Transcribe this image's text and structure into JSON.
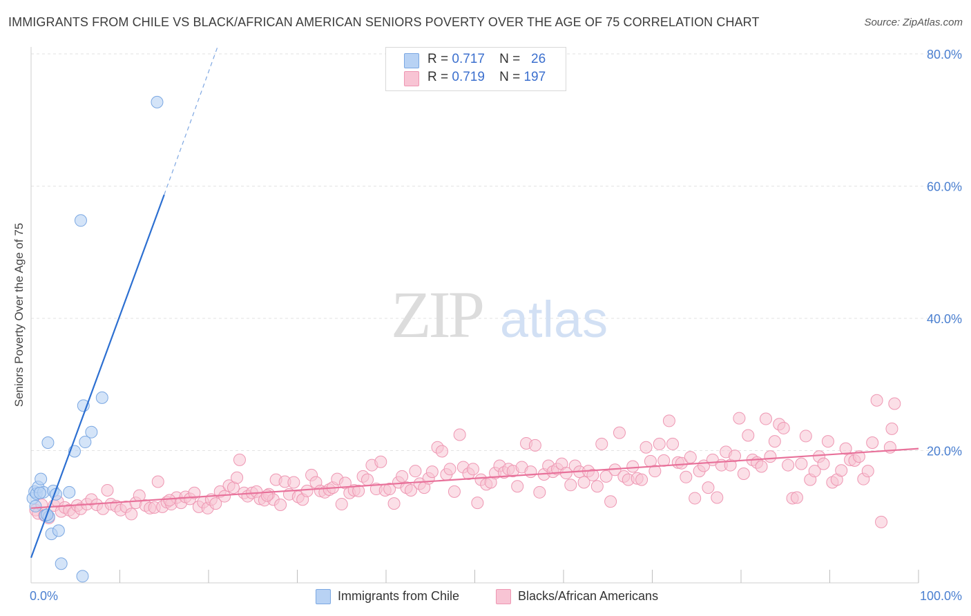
{
  "title": "IMMIGRANTS FROM CHILE VS BLACK/AFRICAN AMERICAN SENIORS POVERTY OVER THE AGE OF 75 CORRELATION CHART",
  "source": "Source: ZipAtlas.com",
  "watermark": {
    "zip": "ZIP",
    "atlas": "atlas"
  },
  "legend_top": {
    "rows": [
      {
        "r_label": "R =",
        "r_value": "0.717",
        "n_label": "N =",
        "n_value": "26"
      },
      {
        "r_label": "R =",
        "r_value": "0.719",
        "n_label": "N =",
        "n_value": "197"
      }
    ]
  },
  "colors": {
    "chile_fill": "#b8d2f4",
    "chile_stroke": "#7aa7e2",
    "chile_line": "#2c6fd1",
    "black_fill": "#f8c4d4",
    "black_stroke": "#ee96b2",
    "black_line": "#e8719a",
    "axis_text": "#4a7fd0",
    "grid": "#e2e2e2"
  },
  "chart_data": {
    "type": "scatter",
    "title": "IMMIGRANTS FROM CHILE VS BLACK/AFRICAN AMERICAN SENIORS POVERTY OVER THE AGE OF 75 CORRELATION CHART",
    "xlabel": "",
    "ylabel": "Seniors Poverty Over the Age of 75",
    "xlim": [
      0,
      100
    ],
    "ylim": [
      0,
      80
    ],
    "x_tick_labels": [
      "0.0%",
      "100.0%"
    ],
    "y_tick_labels": [
      "20.0%",
      "40.0%",
      "60.0%",
      "80.0%"
    ],
    "y_ticks": [
      20,
      40,
      60,
      80
    ],
    "grid": true,
    "legend_position": "bottom",
    "series": [
      {
        "name": "Immigrants from Chile",
        "r": 0.717,
        "n": 26,
        "trend": {
          "x": [
            0,
            15
          ],
          "y": [
            3.8,
            58.7
          ],
          "dashed_to": [
            21,
            81
          ]
        },
        "points": [
          [
            0.2,
            12.8
          ],
          [
            0.4,
            13.8
          ],
          [
            0.6,
            13.5
          ],
          [
            0.8,
            14.5
          ],
          [
            1.1,
            15.7
          ],
          [
            1.4,
            13.7
          ],
          [
            1.6,
            10.2
          ],
          [
            1.9,
            21.2
          ],
          [
            2.0,
            10.0
          ],
          [
            2.3,
            7.4
          ],
          [
            2.5,
            13.9
          ],
          [
            2.8,
            13.4
          ],
          [
            3.1,
            7.9
          ],
          [
            3.4,
            2.9
          ],
          [
            4.3,
            13.7
          ],
          [
            4.9,
            19.9
          ],
          [
            5.6,
            54.8
          ],
          [
            5.8,
            1.0
          ],
          [
            5.9,
            26.8
          ],
          [
            6.1,
            21.3
          ],
          [
            6.8,
            22.8
          ],
          [
            8.0,
            28.0
          ],
          [
            14.2,
            72.7
          ],
          [
            0.5,
            11.6
          ],
          [
            1.0,
            13.6
          ],
          [
            1.8,
            10.3
          ]
        ]
      },
      {
        "name": "Blacks/African Americans",
        "r": 0.719,
        "n": 197,
        "trend": {
          "x": [
            0,
            100
          ],
          "y": [
            11.3,
            20.3
          ]
        },
        "points": [
          [
            0.5,
            11.0
          ],
          [
            0.8,
            10.5
          ],
          [
            1.2,
            11.8
          ],
          [
            1.5,
            10.2
          ],
          [
            2.0,
            9.8
          ],
          [
            2.6,
            11.7
          ],
          [
            3.0,
            12.3
          ],
          [
            3.4,
            10.8
          ],
          [
            3.8,
            11.4
          ],
          [
            4.3,
            11.0
          ],
          [
            4.8,
            10.6
          ],
          [
            5.2,
            11.7
          ],
          [
            5.6,
            11.2
          ],
          [
            6.3,
            11.9
          ],
          [
            6.8,
            12.6
          ],
          [
            7.4,
            11.8
          ],
          [
            8.1,
            11.2
          ],
          [
            8.6,
            14.0
          ],
          [
            9.0,
            11.9
          ],
          [
            9.6,
            11.6
          ],
          [
            10.1,
            11.0
          ],
          [
            10.7,
            11.5
          ],
          [
            11.3,
            10.4
          ],
          [
            11.8,
            12.1
          ],
          [
            12.2,
            13.2
          ],
          [
            12.9,
            11.7
          ],
          [
            13.4,
            11.3
          ],
          [
            13.9,
            11.4
          ],
          [
            14.3,
            15.3
          ],
          [
            14.8,
            11.5
          ],
          [
            15.3,
            12.2
          ],
          [
            15.8,
            11.9
          ],
          [
            16.4,
            12.9
          ],
          [
            16.9,
            12.1
          ],
          [
            17.4,
            13.0
          ],
          [
            17.9,
            12.7
          ],
          [
            18.4,
            13.6
          ],
          [
            18.9,
            11.5
          ],
          [
            19.4,
            12.2
          ],
          [
            19.9,
            11.3
          ],
          [
            20.3,
            12.6
          ],
          [
            20.8,
            12.0
          ],
          [
            21.3,
            13.8
          ],
          [
            21.8,
            13.1
          ],
          [
            22.3,
            14.7
          ],
          [
            22.8,
            14.4
          ],
          [
            23.2,
            15.9
          ],
          [
            23.5,
            18.6
          ],
          [
            24.0,
            13.6
          ],
          [
            24.4,
            13.1
          ],
          [
            24.9,
            13.6
          ],
          [
            25.4,
            13.8
          ],
          [
            25.8,
            12.7
          ],
          [
            26.3,
            12.5
          ],
          [
            26.8,
            13.4
          ],
          [
            27.3,
            12.6
          ],
          [
            27.6,
            15.6
          ],
          [
            28.1,
            11.8
          ],
          [
            28.6,
            15.3
          ],
          [
            29.1,
            13.4
          ],
          [
            29.6,
            15.2
          ],
          [
            30.1,
            13.0
          ],
          [
            30.6,
            12.6
          ],
          [
            31.1,
            13.9
          ],
          [
            31.6,
            16.3
          ],
          [
            32.1,
            15.2
          ],
          [
            32.6,
            13.9
          ],
          [
            33.1,
            13.7
          ],
          [
            33.6,
            14.1
          ],
          [
            34.0,
            14.4
          ],
          [
            34.5,
            15.7
          ],
          [
            35.0,
            11.9
          ],
          [
            35.4,
            15.1
          ],
          [
            35.9,
            13.6
          ],
          [
            36.4,
            14.0
          ],
          [
            36.9,
            13.9
          ],
          [
            37.4,
            16.1
          ],
          [
            37.9,
            15.6
          ],
          [
            38.4,
            17.8
          ],
          [
            38.9,
            14.2
          ],
          [
            39.4,
            18.3
          ],
          [
            39.9,
            14.0
          ],
          [
            40.4,
            14.2
          ],
          [
            40.9,
            12.0
          ],
          [
            41.4,
            15.2
          ],
          [
            41.8,
            16.1
          ],
          [
            42.3,
            14.4
          ],
          [
            42.8,
            14.0
          ],
          [
            43.3,
            16.9
          ],
          [
            43.8,
            15.0
          ],
          [
            44.3,
            14.4
          ],
          [
            44.8,
            15.8
          ],
          [
            45.2,
            16.8
          ],
          [
            45.8,
            20.5
          ],
          [
            46.3,
            19.9
          ],
          [
            46.8,
            16.4
          ],
          [
            47.2,
            17.2
          ],
          [
            47.7,
            13.8
          ],
          [
            48.3,
            22.4
          ],
          [
            48.7,
            17.5
          ],
          [
            49.3,
            16.5
          ],
          [
            49.8,
            17.2
          ],
          [
            50.3,
            12.1
          ],
          [
            50.7,
            15.6
          ],
          [
            51.3,
            14.9
          ],
          [
            51.8,
            15.2
          ],
          [
            52.3,
            16.6
          ],
          [
            52.8,
            17.7
          ],
          [
            53.3,
            16.7
          ],
          [
            53.8,
            17.2
          ],
          [
            54.3,
            16.9
          ],
          [
            54.8,
            14.6
          ],
          [
            55.3,
            17.5
          ],
          [
            55.8,
            21.1
          ],
          [
            56.3,
            16.8
          ],
          [
            56.8,
            20.8
          ],
          [
            57.3,
            13.7
          ],
          [
            57.8,
            16.4
          ],
          [
            58.3,
            17.7
          ],
          [
            58.8,
            16.8
          ],
          [
            59.3,
            17.2
          ],
          [
            59.8,
            18.0
          ],
          [
            60.3,
            16.6
          ],
          [
            60.8,
            14.8
          ],
          [
            61.3,
            17.7
          ],
          [
            61.8,
            16.8
          ],
          [
            62.3,
            15.2
          ],
          [
            62.8,
            16.9
          ],
          [
            63.3,
            16.3
          ],
          [
            63.8,
            14.6
          ],
          [
            64.3,
            21.0
          ],
          [
            64.8,
            16.1
          ],
          [
            65.3,
            12.3
          ],
          [
            65.8,
            17.1
          ],
          [
            66.3,
            22.7
          ],
          [
            66.8,
            16.1
          ],
          [
            67.3,
            15.6
          ],
          [
            67.8,
            17.6
          ],
          [
            68.3,
            15.8
          ],
          [
            68.8,
            15.6
          ],
          [
            69.3,
            20.5
          ],
          [
            69.8,
            18.4
          ],
          [
            70.3,
            16.9
          ],
          [
            70.8,
            21.0
          ],
          [
            71.3,
            18.5
          ],
          [
            71.9,
            24.5
          ],
          [
            72.3,
            21.0
          ],
          [
            72.9,
            18.2
          ],
          [
            73.3,
            18.1
          ],
          [
            73.8,
            16.0
          ],
          [
            74.3,
            19.0
          ],
          [
            74.8,
            12.8
          ],
          [
            75.3,
            16.9
          ],
          [
            75.8,
            17.7
          ],
          [
            76.3,
            14.4
          ],
          [
            76.8,
            18.6
          ],
          [
            77.3,
            12.9
          ],
          [
            77.8,
            17.8
          ],
          [
            78.3,
            19.8
          ],
          [
            78.8,
            17.8
          ],
          [
            79.3,
            19.2
          ],
          [
            79.8,
            24.9
          ],
          [
            80.3,
            16.5
          ],
          [
            80.8,
            22.3
          ],
          [
            81.3,
            18.6
          ],
          [
            81.8,
            18.2
          ],
          [
            82.3,
            17.6
          ],
          [
            82.8,
            24.8
          ],
          [
            83.3,
            19.1
          ],
          [
            83.8,
            21.4
          ],
          [
            84.3,
            24.0
          ],
          [
            84.8,
            23.4
          ],
          [
            85.3,
            17.8
          ],
          [
            85.8,
            12.8
          ],
          [
            86.3,
            12.9
          ],
          [
            86.8,
            18.0
          ],
          [
            87.3,
            22.2
          ],
          [
            87.8,
            15.6
          ],
          [
            88.3,
            16.9
          ],
          [
            88.8,
            19.1
          ],
          [
            89.3,
            18.0
          ],
          [
            89.8,
            21.4
          ],
          [
            90.3,
            15.2
          ],
          [
            90.8,
            15.6
          ],
          [
            91.3,
            17.0
          ],
          [
            91.8,
            20.3
          ],
          [
            92.3,
            18.6
          ],
          [
            92.8,
            18.5
          ],
          [
            93.3,
            19.1
          ],
          [
            93.8,
            15.7
          ],
          [
            94.3,
            16.9
          ],
          [
            94.8,
            21.2
          ],
          [
            95.3,
            27.6
          ],
          [
            95.8,
            9.2
          ],
          [
            96.8,
            20.5
          ],
          [
            97.0,
            23.3
          ],
          [
            97.3,
            27.1
          ],
          [
            15.6,
            12.5
          ],
          [
            26.6,
            13.2
          ]
        ]
      }
    ]
  },
  "legend_bottom": {
    "items": [
      {
        "label": "Immigrants from Chile"
      },
      {
        "label": "Blacks/African Americans"
      }
    ]
  }
}
